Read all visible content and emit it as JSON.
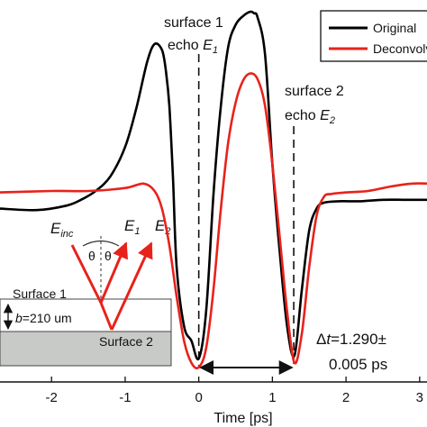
{
  "chart_data": {
    "type": "line",
    "title": "",
    "xlabel": "Time [ps]",
    "ylabel": "",
    "xlim": [
      -2.7,
      3.1
    ],
    "ylim": [
      -1.18,
      1.42
    ],
    "xticks": [
      -2,
      -1,
      0,
      1,
      2,
      3
    ],
    "xtick_labels": [
      "-2",
      "-1",
      "0",
      "1",
      "2",
      "3"
    ],
    "grid": false,
    "legend_position": "top-right",
    "series": [
      {
        "name": "Original",
        "color": "#000000",
        "x": [
          -2.7,
          -2.2,
          -1.8,
          -1.6,
          -1.4,
          -1.2,
          -1.0,
          -0.85,
          -0.7,
          -0.6,
          -0.5,
          -0.45,
          -0.4,
          -0.35,
          -0.3,
          -0.2,
          -0.1,
          0.0,
          0.1,
          0.2,
          0.3,
          0.4,
          0.5,
          0.6,
          0.7,
          0.75,
          0.8,
          0.9,
          1.0,
          1.1,
          1.2,
          1.3,
          1.4,
          1.5,
          1.6,
          1.7,
          1.9,
          2.2,
          2.5,
          2.8,
          3.1
        ],
        "y": [
          0.0,
          -0.01,
          0.02,
          0.06,
          0.12,
          0.22,
          0.42,
          0.68,
          1.0,
          1.12,
          1.08,
          0.95,
          0.7,
          0.2,
          -0.4,
          -0.8,
          -0.9,
          -1.02,
          -0.7,
          0.1,
          0.7,
          1.1,
          1.25,
          1.31,
          1.34,
          1.33,
          1.3,
          1.05,
          0.3,
          -0.3,
          -0.8,
          -1.0,
          -0.55,
          -0.15,
          0.0,
          0.04,
          0.05,
          0.05,
          0.06,
          0.06,
          0.06
        ]
      },
      {
        "name": "Deconvolved",
        "color": "#e8221b",
        "x": [
          -2.7,
          -2.0,
          -1.5,
          -1.0,
          -0.75,
          -0.6,
          -0.5,
          -0.4,
          -0.3,
          -0.2,
          -0.1,
          0.0,
          0.1,
          0.2,
          0.3,
          0.4,
          0.5,
          0.6,
          0.7,
          0.8,
          0.9,
          1.0,
          1.1,
          1.2,
          1.3,
          1.4,
          1.5,
          1.6,
          1.7,
          1.8,
          2.0,
          2.3,
          2.6,
          2.9,
          3.1
        ],
        "y": [
          0.11,
          0.12,
          0.12,
          0.14,
          0.17,
          0.12,
          0.0,
          -0.25,
          -0.6,
          -0.9,
          -1.05,
          -1.08,
          -0.95,
          -0.55,
          0.0,
          0.45,
          0.72,
          0.87,
          0.92,
          0.88,
          0.7,
          0.3,
          -0.2,
          -0.7,
          -1.05,
          -0.85,
          -0.4,
          -0.05,
          0.08,
          0.1,
          0.11,
          0.12,
          0.15,
          0.17,
          0.17
        ]
      }
    ],
    "annotations": {
      "surface1_line1": "surface 1",
      "surface1_line2": "echo ",
      "surface1_sym": "E",
      "surface1_sub": "1",
      "surface1_x": 0.0,
      "surface2_line1": "surface 2",
      "surface2_line2": "echo ",
      "surface2_sym": "E",
      "surface2_sub": "2",
      "surface2_x": 1.29,
      "dt_line1_sym": "Δ",
      "dt_line1_var": "t",
      "dt_line1_val": "=1.290±",
      "dt_line2": "0.005 ps",
      "dt_from": 0.0,
      "dt_to": 1.29
    },
    "inset": {
      "e_inc_sym": "E",
      "e_inc_sub": "inc",
      "e1_sym": "E",
      "e1_sub": "1",
      "e2_sym": "E",
      "e2_sub": "2",
      "theta": "θ",
      "surface1_label": "Surface 1",
      "surface2_label": "Surface 2",
      "thickness_var": "b",
      "thickness_val": "=210 um"
    }
  }
}
